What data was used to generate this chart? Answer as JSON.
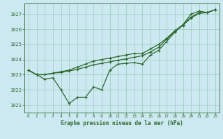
{
  "xlabel": "Graphe pression niveau de la mer (hPa)",
  "bg_color": "#cce8f0",
  "grid_color": "#99ccbb",
  "line_color": "#2d6a2d",
  "ylim": [
    1020.5,
    1027.7
  ],
  "xlim": [
    -0.5,
    23.5
  ],
  "yticks": [
    1021,
    1022,
    1023,
    1024,
    1025,
    1026,
    1027
  ],
  "xticks": [
    0,
    1,
    2,
    3,
    4,
    5,
    6,
    7,
    8,
    9,
    10,
    11,
    12,
    13,
    14,
    15,
    16,
    17,
    18,
    19,
    20,
    21,
    22,
    23
  ],
  "series1": [
    1023.3,
    1023.0,
    1022.7,
    1022.8,
    1022.0,
    1021.1,
    1021.5,
    1021.5,
    1022.2,
    1022.0,
    1023.3,
    1023.7,
    1023.75,
    1023.8,
    1023.7,
    1024.3,
    1024.6,
    1025.2,
    1025.8,
    1026.3,
    1027.0,
    1027.2,
    1027.1,
    1027.3
  ],
  "series2": [
    1023.3,
    1023.0,
    1023.0,
    1023.1,
    1023.15,
    1023.25,
    1023.35,
    1023.5,
    1023.65,
    1023.75,
    1023.85,
    1023.95,
    1024.05,
    1024.15,
    1024.25,
    1024.5,
    1024.8,
    1025.35,
    1025.85,
    1026.25,
    1026.75,
    1027.05,
    1027.1,
    1027.3
  ],
  "series3": [
    1023.3,
    1023.0,
    1023.0,
    1023.1,
    1023.2,
    1023.3,
    1023.5,
    1023.7,
    1023.9,
    1024.0,
    1024.1,
    1024.2,
    1024.3,
    1024.4,
    1024.4,
    1024.7,
    1025.0,
    1025.4,
    1025.9,
    1026.3,
    1026.8,
    1027.1,
    1027.1,
    1027.3
  ]
}
